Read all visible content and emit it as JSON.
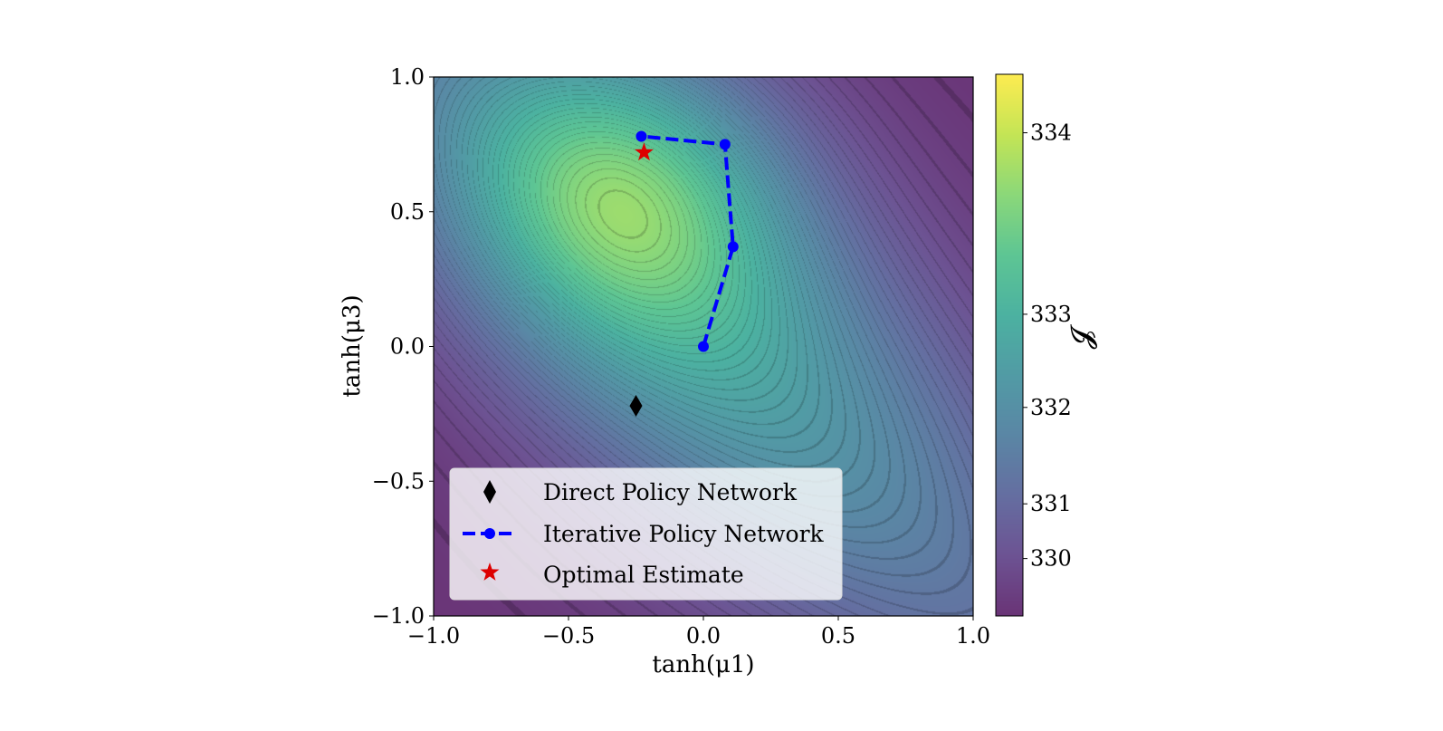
{
  "chart_data": {
    "type": "heatmap",
    "subtype": "filled contour with line contours",
    "colormap": "viridis",
    "xlabel": "tanh(μ1)",
    "ylabel": "tanh(μ3)",
    "xlim": [
      -1.0,
      1.0
    ],
    "ylim": [
      -1.0,
      1.0
    ],
    "xticks": [
      "−1.0",
      "−0.5",
      "0.0",
      "0.5",
      "1.0"
    ],
    "yticks": [
      "−1.0",
      "−0.5",
      "0.0",
      "0.5",
      "1.0"
    ],
    "colorbar": {
      "label": "𝓙",
      "ticks": [
        "330",
        "331",
        "332",
        "333",
        "334"
      ],
      "range": [
        329.85,
        334.4
      ]
    },
    "surface_peak": {
      "x": -0.3,
      "y": 0.62
    },
    "legend_position": "lower-left",
    "series": [
      {
        "name": "Direct Policy Network",
        "marker": "diamond",
        "color": "#000000",
        "points": [
          {
            "x": -0.25,
            "y": -0.22
          }
        ]
      },
      {
        "name": "Iterative Policy Network",
        "marker": "circle",
        "line": "dashed",
        "color": "#0000ff",
        "points": [
          {
            "x": 0.0,
            "y": 0.0
          },
          {
            "x": 0.11,
            "y": 0.37
          },
          {
            "x": 0.08,
            "y": 0.75
          },
          {
            "x": -0.23,
            "y": 0.78
          }
        ]
      },
      {
        "name": "Optimal Estimate",
        "marker": "star",
        "color": "#dd0000",
        "points": [
          {
            "x": -0.22,
            "y": 0.72
          }
        ]
      }
    ]
  }
}
